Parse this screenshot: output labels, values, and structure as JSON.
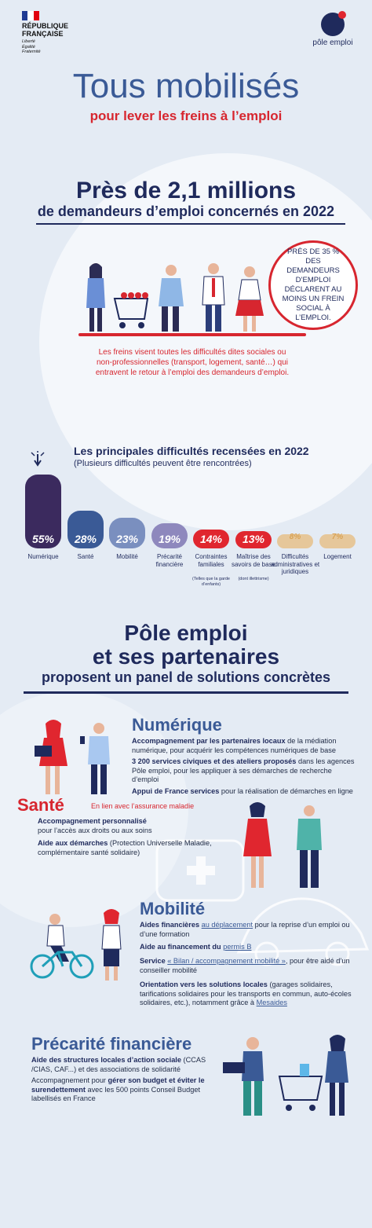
{
  "header": {
    "republic_line1": "RÉPUBLIQUE",
    "republic_line2": "FRANÇAISE",
    "motto": [
      "Liberté",
      "Égalité",
      "Fraternité"
    ],
    "brand": "pôle emploi",
    "flag_colors": [
      "#1f3a93",
      "#ffffff",
      "#e1000f"
    ]
  },
  "hero": {
    "title": "Tous mobilisés",
    "subtitle": "pour lever les freins à l’emploi"
  },
  "section1": {
    "title": "Près de 2,1 millions",
    "subtitle": "de demandeurs d’emploi concernés en 2022",
    "badge": "PRÈS DE 35 % DES DEMANDEURS D’EMPLOI DÉCLARENT AU MOINS UN FREIN SOCIAL À L’EMPLOI.",
    "description": "Les freins visent toutes les difficultés dites sociales ou non-professionnelles (transport, logement, santé…) qui entravent le retour à l’emploi des demandeurs d’emploi."
  },
  "section2": {
    "title": "Les principales difficultés recensées en 2022",
    "subtitle": "(Plusieurs difficultés peuvent être rencontrées)"
  },
  "chart_data": {
    "type": "bar",
    "title": "Les principales difficultés recensées en 2022",
    "categories": [
      "Numérique",
      "Santé",
      "Mobilité",
      "Précarité financière",
      "Contraintes familiales",
      "Maîtrise des savoirs de base",
      "Difficultés administratives et juridiques",
      "Logement"
    ],
    "values": [
      55,
      28,
      23,
      19,
      14,
      13,
      8,
      7
    ],
    "value_labels": [
      "55%",
      "28%",
      "23%",
      "19%",
      "14%",
      "13%",
      "8%",
      "7%"
    ],
    "notes": [
      "",
      "",
      "",
      "",
      "(Telles que la garde d’enfants)",
      "(dont illettrisme)",
      "",
      ""
    ],
    "colors": [
      "#3b2a5e",
      "#3a5a96",
      "#7a8fbf",
      "#8e88bd",
      "#e0262f",
      "#e0262f",
      "#e6c79a",
      "#e6c79a"
    ]
  },
  "section3": {
    "line1": "Pôle emploi",
    "line2": "et ses partenaires",
    "line3": "proposent un panel de solutions concrètes"
  },
  "numerique": {
    "title": "Numérique",
    "p1_bold": "Accompagnement par les partenaires locaux",
    "p1_rest": " de la médiation numérique, pour acquérir les compétences numériques de base",
    "p2_bold": "3 200 services civiques et des ateliers proposés",
    "p2_rest": " dans les agences Pôle emploi, pour les appliquer à ses démarches de recherche d’emploi",
    "p3_bold": "Appui de France services",
    "p3_rest": " pour la réalisation de démarches en ligne"
  },
  "sante": {
    "title": "Santé",
    "note": "En lien avec l’assurance maladie",
    "p1_bold": "Accompagnement personnalisé",
    "p1_rest": "pour l’accès aux droits ou aux soins",
    "p2_bold": "Aide aux démarches",
    "p2_rest": " (Protection Universelle Maladie, complémentaire santé solidaire)"
  },
  "mobilite": {
    "title": "Mobilité",
    "p1_bold": "Aides financières",
    "p1_link": "au déplacement",
    "p1_rest": " pour la reprise d’un emploi ou d’une formation",
    "p2_bold": "Aide au financement du",
    "p2_link": "permis B",
    "p3_bold": "Service",
    "p3_link": "« Bilan / accompagnement mobilité »",
    "p3_rest": ", pour être aidé d’un conseiller mobilité",
    "p4_bold": "Orientation vers les solutions locales",
    "p4_rest": " (garages solidaires, tarifications solidaires pour les transports en commun, auto-écoles solidaires, etc.), notamment grâce à ",
    "p4_link": "Mesaides"
  },
  "precarite": {
    "title": "Précarité financière",
    "p1_bold": "Aide des structures locales d’action sociale",
    "p1_rest": " (CCAS /CIAS, CAF...) et des associations de solidarité",
    "p2_start": "Accompagnement pour ",
    "p2_bold1": "gérer son budget et éviter le surendettement",
    "p2_rest": " avec les 500 points Conseil Budget labellisés en France"
  }
}
